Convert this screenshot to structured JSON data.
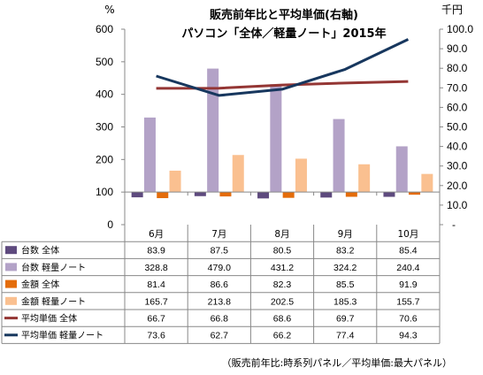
{
  "chart_data": {
    "type": "bar",
    "title": "販売前年比と平均単価(右軸)",
    "subtitle": "パソコン「全体／軽量ノート」2015年",
    "left_axis": {
      "unit": "%",
      "ylim": [
        0,
        600
      ],
      "ticks": [
        "0",
        "100",
        "200",
        "300",
        "400",
        "500",
        "600"
      ],
      "baseline": 100
    },
    "right_axis": {
      "unit": "千円",
      "ylim": [
        -10,
        100
      ],
      "ticks": [
        "-",
        "10.0",
        "20.0",
        "30.0",
        "40.0",
        "50.0",
        "60.0",
        "70.0",
        "80.0",
        "90.0",
        "100.0"
      ]
    },
    "categories": [
      "6月",
      "7月",
      "8月",
      "9月",
      "10月"
    ],
    "series": [
      {
        "name": "台数 全体",
        "type": "bar",
        "axis": "left",
        "color": "#5e4a7e",
        "values": [
          83.9,
          87.5,
          80.5,
          83.2,
          85.4
        ],
        "labels": [
          "83.9",
          "87.5",
          "80.5",
          "83.2",
          "85.4"
        ]
      },
      {
        "name": "台数 軽量ノート",
        "type": "bar",
        "axis": "left",
        "color": "#b3a2c7",
        "values": [
          328.8,
          479.0,
          431.2,
          324.2,
          240.4
        ],
        "labels": [
          "328.8",
          "479.0",
          "431.2",
          "324.2",
          "240.4"
        ]
      },
      {
        "name": "金額 全体",
        "type": "bar",
        "axis": "left",
        "color": "#e46c0a",
        "values": [
          81.4,
          86.6,
          82.3,
          85.5,
          91.9
        ],
        "labels": [
          "81.4",
          "86.6",
          "82.3",
          "85.5",
          "91.9"
        ]
      },
      {
        "name": "金額 軽量ノート",
        "type": "bar",
        "axis": "left",
        "color": "#fac090",
        "values": [
          165.7,
          213.8,
          202.5,
          185.3,
          155.7
        ],
        "labels": [
          "165.7",
          "213.8",
          "202.5",
          "185.3",
          "155.7"
        ]
      },
      {
        "name": "平均単価 全体",
        "type": "line",
        "axis": "right",
        "color": "#943634",
        "values": [
          66.7,
          66.8,
          68.6,
          69.7,
          70.6
        ],
        "labels": [
          "66.7",
          "66.8",
          "68.6",
          "69.7",
          "70.6"
        ]
      },
      {
        "name": "平均単価 軽量ノート",
        "type": "line",
        "axis": "right",
        "color": "#17375e",
        "values": [
          73.6,
          62.7,
          66.2,
          77.4,
          94.3
        ],
        "labels": [
          "73.6",
          "62.7",
          "66.2",
          "77.4",
          "94.3"
        ]
      }
    ],
    "grid": false,
    "legend": "table-below"
  },
  "footnote": "（販売前年比:時系列パネル／平均単価:最大パネル）"
}
